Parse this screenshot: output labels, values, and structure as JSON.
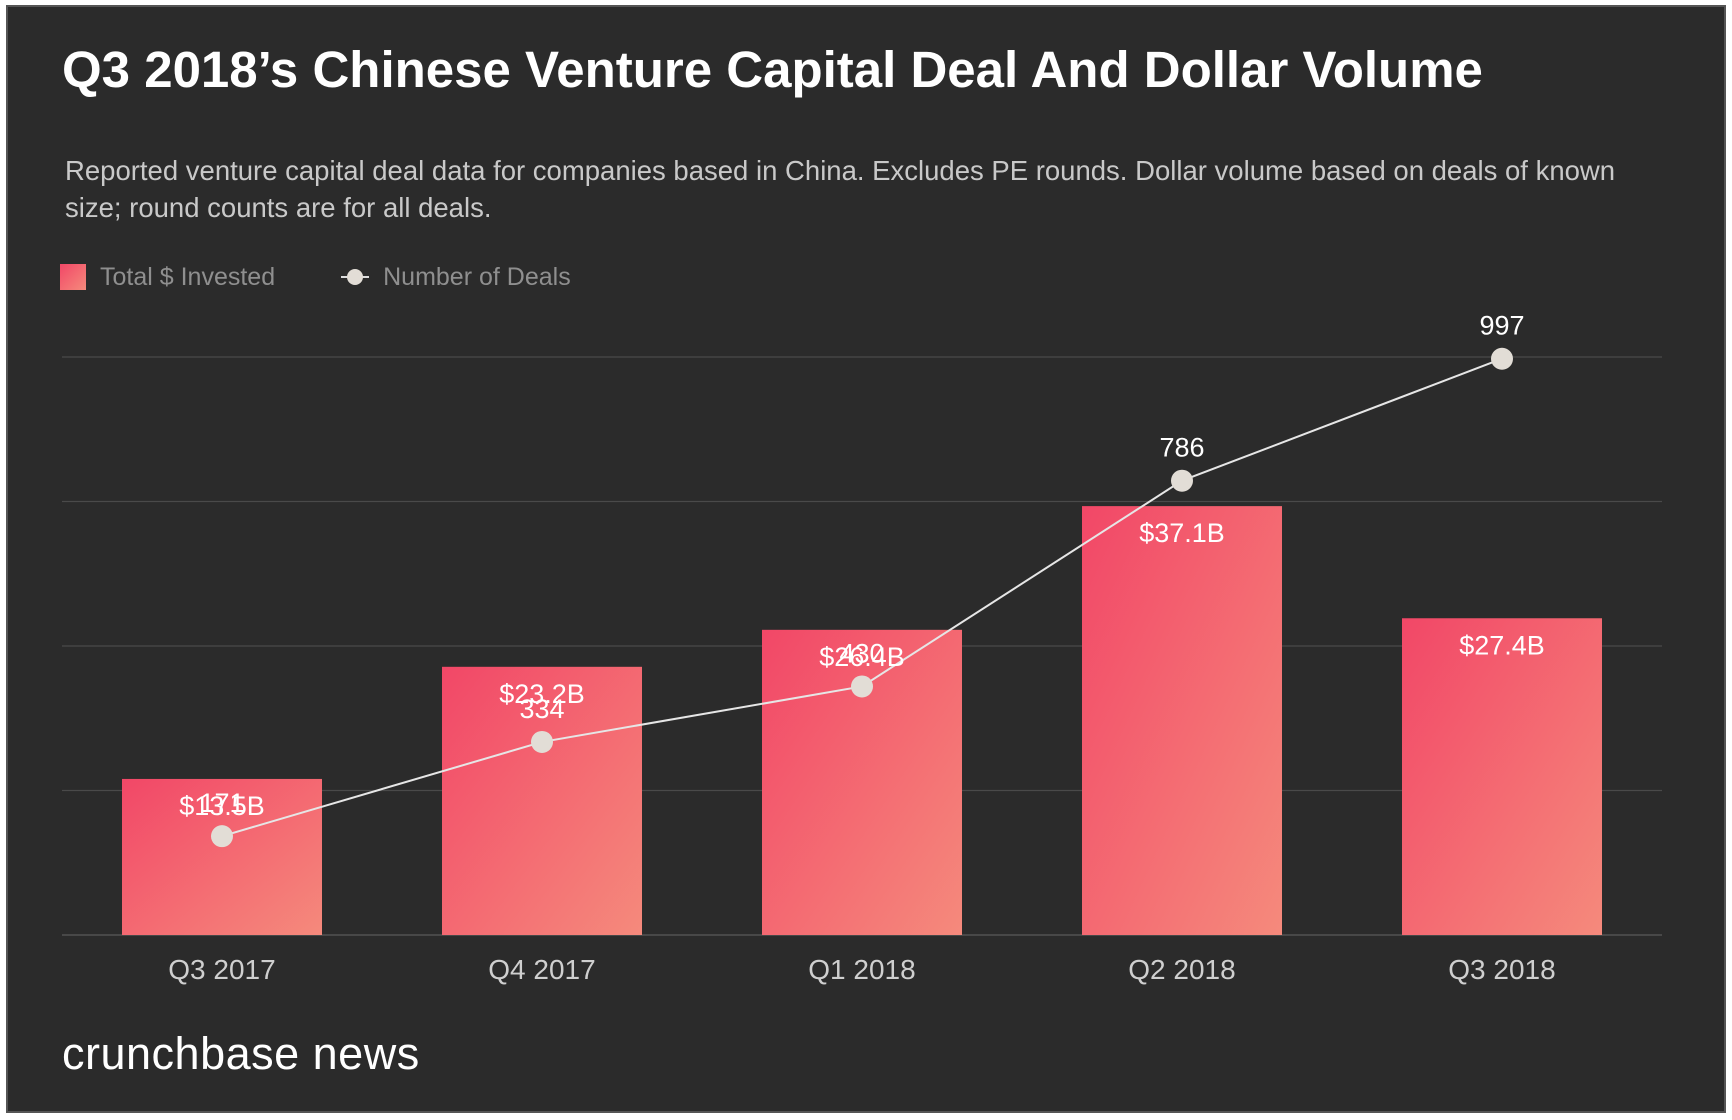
{
  "header": {
    "title": "Q3 2018’s Chinese Venture Capital Deal And Dollar Volume",
    "subtitle": "Reported venture capital deal data for companies based in China. Excludes PE rounds. Dollar volume based on deals of known size; round counts are for all deals."
  },
  "legend": {
    "bars_label": "Total $ Invested",
    "line_label": "Number of Deals"
  },
  "footer": {
    "brand": "crunchbase news"
  },
  "colors": {
    "background": "#2b2b2b",
    "bar_top": "#f24767",
    "bar_bottom": "#f58a7c",
    "line": "#e6e6e6",
    "marker": "#e2ddd6",
    "gridline": "#4a4a4a"
  },
  "chart_data": {
    "type": "bar",
    "title": "Q3 2018’s Chinese Venture Capital Deal And Dollar Volume",
    "categories": [
      "Q3 2017",
      "Q4 2017",
      "Q1 2018",
      "Q2 2018",
      "Q3 2018"
    ],
    "series": [
      {
        "name": "Total $ Invested",
        "type": "bar",
        "unit": "USD billions",
        "values": [
          13.5,
          23.2,
          26.4,
          37.1,
          27.4
        ],
        "labels": [
          "$13.5B",
          "$23.2B",
          "$26.4B",
          "$37.1B",
          "$27.4B"
        ]
      },
      {
        "name": "Number of Deals",
        "type": "line",
        "values": [
          171,
          334,
          430,
          786,
          997
        ],
        "labels": [
          "171",
          "334",
          "430",
          "786",
          "997"
        ]
      }
    ],
    "bar_axis_range": [
      0,
      50
    ],
    "line_axis_range": [
      0,
      1000
    ],
    "gridlines": 4,
    "legend_position": "top-left"
  }
}
